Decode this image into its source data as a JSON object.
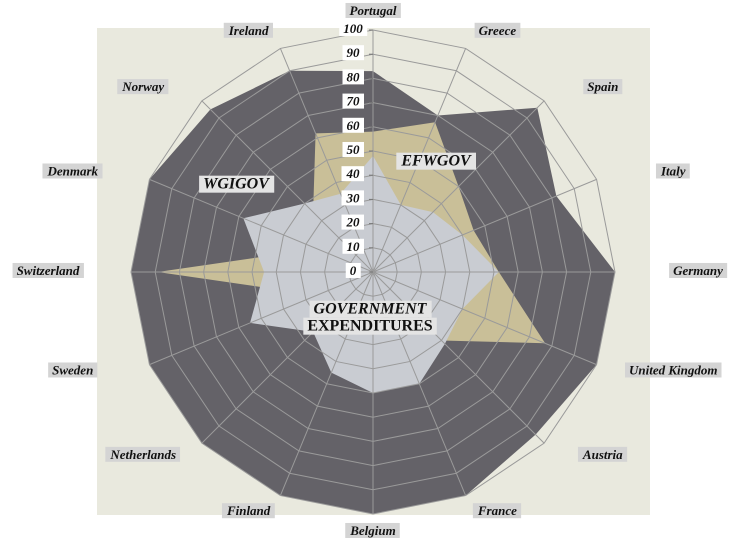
{
  "chart_data": {
    "type": "radar",
    "categories": [
      "Portugal",
      "Greece",
      "Spain",
      "Italy",
      "Germany",
      "United Kingdom",
      "Austria",
      "France",
      "Belgium",
      "Finland",
      "Netherlands",
      "Sweden",
      "Switzerland",
      "Denmark",
      "Norway",
      "Ireland"
    ],
    "series": [
      {
        "color": "#646268",
        "values": [
          83,
          70,
          96,
          82,
          100,
          100,
          95,
          100,
          100,
          100,
          100,
          100,
          100,
          100,
          95,
          90
        ]
      },
      {
        "color": "#c9bf98",
        "values": [
          58,
          67,
          50,
          45,
          52,
          77,
          40,
          30,
          28,
          30,
          25,
          25,
          89,
          25,
          35,
          62
        ]
      },
      {
        "color": "#c9ccd2",
        "values": [
          48,
          30,
          35,
          40,
          52,
          40,
          42,
          50,
          50,
          45,
          35,
          55,
          45,
          58,
          40,
          35
        ]
      }
    ],
    "annotations": [
      "WGIGOV",
      "EFWGOV",
      "GOVERNMENT",
      "EXPENDITURES"
    ],
    "ylim": [
      0,
      100
    ],
    "yticks": [
      0,
      10,
      20,
      30,
      40,
      50,
      60,
      70,
      80,
      90,
      100
    ],
    "grid": true
  }
}
